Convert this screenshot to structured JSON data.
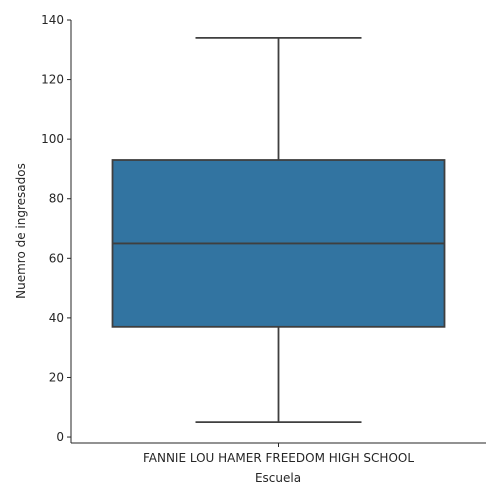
{
  "chart_data": {
    "type": "box",
    "title": "",
    "xlabel": "Escuela",
    "ylabel": "Nuemro de ingresados",
    "categories": [
      "FANNIE LOU HAMER FREEDOM HIGH SCHOOL"
    ],
    "boxes": [
      {
        "category": "FANNIE LOU HAMER FREEDOM HIGH SCHOOL",
        "whisker_low": 5,
        "q1": 37,
        "median": 65,
        "q3": 93,
        "whisker_high": 134
      }
    ],
    "ylim": [
      -2,
      140
    ],
    "yticks": [
      0,
      20,
      40,
      60,
      80,
      100,
      120,
      140
    ],
    "grid": false,
    "box_color": "#3274a1",
    "line_color": "#3f3f3f"
  }
}
